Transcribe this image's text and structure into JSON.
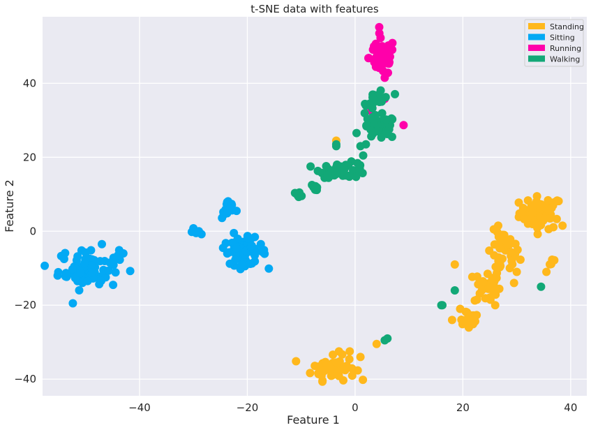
{
  "chart_data": {
    "type": "scatter",
    "title": "t-SNE data with features",
    "xlabel": "Feature 1",
    "ylabel": "Feature 2",
    "xlim": [
      -58,
      43
    ],
    "ylim": [
      -44.5,
      58
    ],
    "xticks": [
      -40,
      -20,
      0,
      20,
      40
    ],
    "yticks": [
      -40,
      -20,
      0,
      20,
      40
    ],
    "grid": true,
    "legend_position": "top-right",
    "series": [
      {
        "name": "Standing",
        "color": "#FFB81C",
        "clusters": [
          {
            "cx": 34.5,
            "cy": 5.0,
            "sx": 2.0,
            "sy": 2.2,
            "n": 60
          },
          {
            "cx": 27.5,
            "cy": -6.0,
            "sx": 1.5,
            "sy": 3.0,
            "n": 40
          },
          {
            "cx": 24.5,
            "cy": -15.0,
            "sx": 1.2,
            "sy": 2.5,
            "n": 30
          },
          {
            "cx": 21.0,
            "cy": -23.5,
            "sx": 1.2,
            "sy": 1.5,
            "n": 15
          },
          {
            "cx": 36.5,
            "cy": -8.0,
            "sx": 0.4,
            "sy": 0.8,
            "n": 4
          },
          {
            "cx": -4.0,
            "cy": -37.0,
            "sx": 2.0,
            "sy": 1.6,
            "n": 55
          }
        ],
        "points": [
          [
            38.5,
            1.5
          ],
          [
            18.5,
            -9.0
          ],
          [
            30.0,
            -11.0
          ],
          [
            35.5,
            -11.0
          ],
          [
            29.5,
            -14.0
          ],
          [
            1.0,
            -34.0
          ],
          [
            4.0,
            -30.5
          ],
          [
            -3.0,
            -32.5
          ],
          [
            -1.0,
            -32.5
          ],
          [
            -3.5,
            24.5
          ],
          [
            19.5,
            -21.0
          ],
          [
            18.0,
            -24.0
          ],
          [
            26.0,
            -20.0
          ]
        ]
      },
      {
        "name": "Sitting",
        "color": "#03A9F4",
        "clusters": [
          {
            "cx": -49.5,
            "cy": -10.0,
            "sx": 2.8,
            "sy": 2.8,
            "n": 70
          },
          {
            "cx": -20.5,
            "cy": -5.5,
            "sx": 2.0,
            "sy": 1.8,
            "n": 50
          },
          {
            "cx": -23.5,
            "cy": 6.0,
            "sx": 0.6,
            "sy": 1.3,
            "n": 18
          }
        ],
        "points": [
          [
            -30.0,
            0.8
          ],
          [
            -29.5,
            -0.5
          ],
          [
            -28.5,
            -0.8
          ],
          [
            -30.3,
            -0.2
          ],
          [
            -29.0,
            0.0
          ],
          [
            -44.0,
            -6.5
          ],
          [
            -43.0,
            -6.0
          ],
          [
            -45.5,
            -8.5
          ],
          [
            -54.0,
            -7.5
          ],
          [
            -22.0,
            5.5
          ],
          [
            -17.5,
            -3.5
          ],
          [
            -22.5,
            -0.5
          ],
          [
            -24.5,
            -4.5
          ],
          [
            -21.0,
            -9.0
          ]
        ]
      },
      {
        "name": "Running",
        "color": "#FF00AA",
        "clusters": [
          {
            "cx": 5.0,
            "cy": 47.0,
            "sx": 1.2,
            "sy": 2.5,
            "n": 55
          }
        ],
        "points": [
          [
            9.0,
            28.7
          ],
          [
            5.5,
            35.8
          ],
          [
            3.0,
            32.5
          ],
          [
            4.5,
            53.5
          ],
          [
            3.5,
            50.0
          ],
          [
            5.5,
            41.5
          ]
        ]
      },
      {
        "name": "Walking",
        "color": "#12A877",
        "clusters": [
          {
            "cx": 4.5,
            "cy": 28.0,
            "sx": 1.6,
            "sy": 1.6,
            "n": 45
          },
          {
            "cx": 4.5,
            "cy": 36.0,
            "sx": 1.2,
            "sy": 1.6,
            "n": 20
          },
          {
            "cx": -2.0,
            "cy": 16.5,
            "sx": 2.2,
            "sy": 1.0,
            "n": 45
          },
          {
            "cx": -7.5,
            "cy": 11.5,
            "sx": 0.3,
            "sy": 0.6,
            "n": 8
          },
          {
            "cx": -10.5,
            "cy": 10.0,
            "sx": 0.5,
            "sy": 0.3,
            "n": 6
          }
        ],
        "points": [
          [
            -3.5,
            23.5
          ],
          [
            -3.5,
            23.0
          ],
          [
            1.0,
            23.0
          ],
          [
            2.0,
            23.5
          ],
          [
            1.5,
            20.5
          ],
          [
            2.0,
            34.0
          ],
          [
            16.0,
            -20.0
          ],
          [
            16.2,
            -20.0
          ],
          [
            18.5,
            -16.0
          ],
          [
            34.5,
            -15.0
          ],
          [
            5.5,
            -29.5
          ],
          [
            6.0,
            -29.0
          ],
          [
            -8.0,
            12.5
          ]
        ]
      }
    ]
  }
}
